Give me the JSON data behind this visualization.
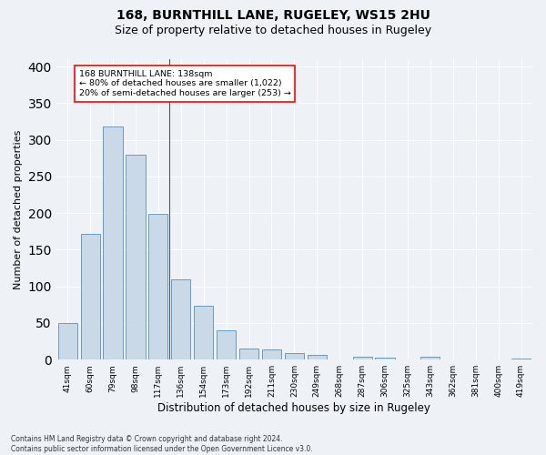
{
  "title1": "168, BURNTHILL LANE, RUGELEY, WS15 2HU",
  "title2": "Size of property relative to detached houses in Rugeley",
  "xlabel": "Distribution of detached houses by size in Rugeley",
  "ylabel": "Number of detached properties",
  "footnote": "Contains HM Land Registry data © Crown copyright and database right 2024.\nContains public sector information licensed under the Open Government Licence v3.0.",
  "categories": [
    "41sqm",
    "60sqm",
    "79sqm",
    "98sqm",
    "117sqm",
    "136sqm",
    "154sqm",
    "173sqm",
    "192sqm",
    "211sqm",
    "230sqm",
    "249sqm",
    "268sqm",
    "287sqm",
    "306sqm",
    "325sqm",
    "343sqm",
    "362sqm",
    "381sqm",
    "400sqm",
    "419sqm"
  ],
  "values": [
    50,
    172,
    318,
    280,
    199,
    109,
    73,
    40,
    15,
    14,
    9,
    6,
    0,
    4,
    3,
    0,
    4,
    0,
    0,
    0,
    2
  ],
  "bar_color": "#c9d9e8",
  "bar_edge_color": "#5b8db8",
  "annotation_text_line1": "168 BURNTHILL LANE: 138sqm",
  "annotation_text_line2": "← 80% of detached houses are smaller (1,022)",
  "annotation_text_line3": "20% of semi-detached houses are larger (253) →",
  "annotation_box_color": "white",
  "annotation_box_edge_color": "red",
  "vline_color": "#555555",
  "bg_color": "#eef2f7",
  "grid_color": "white",
  "ylim": [
    0,
    410
  ],
  "title1_fontsize": 10,
  "title2_fontsize": 9,
  "xlabel_fontsize": 8.5,
  "ylabel_fontsize": 8
}
